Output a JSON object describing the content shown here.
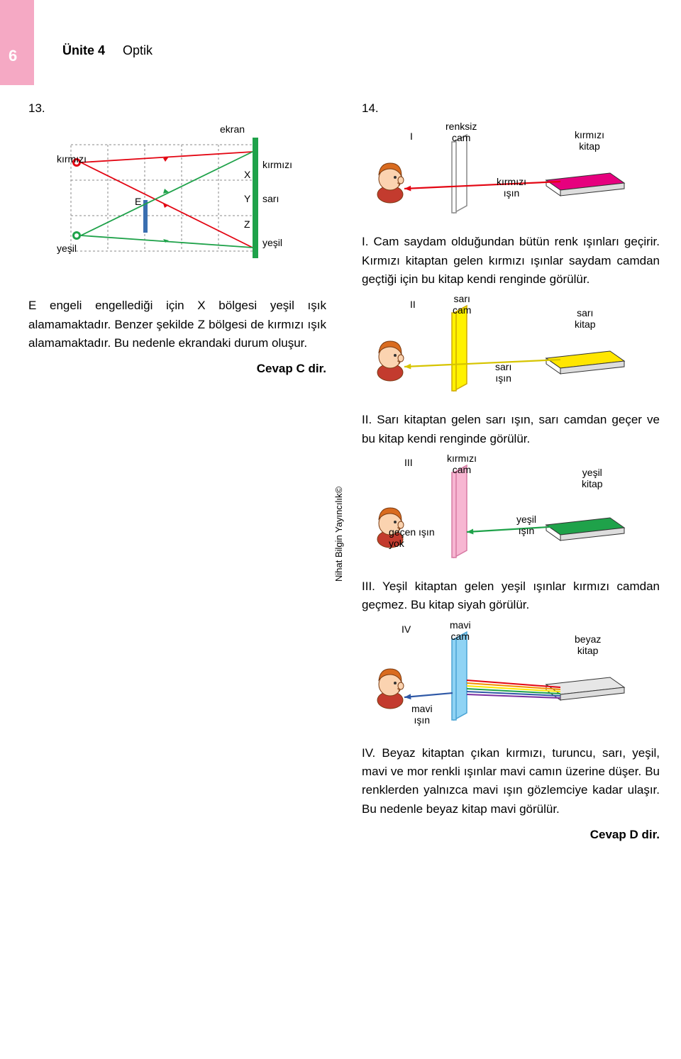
{
  "page": {
    "number": "6",
    "unit": "Ünite 4",
    "topic": "Optik"
  },
  "publisher": "Nihat Bilgin Yayıncılık©",
  "q13": {
    "num": "13.",
    "labels": {
      "ekran": "ekran",
      "kirmizi_left": "kırmızı",
      "kirmizi_right": "kırmızı",
      "sari": "sarı",
      "yesil_left": "yeşil",
      "yesil_right": "yeşil",
      "X": "X",
      "Y": "Y",
      "Z": "Z",
      "E": "E"
    },
    "text": "E engeli engellediği için X bölgesi yeşil ışık alamamaktadır. Benzer şekilde Z bölgesi de kırmızı ışık alamamaktadır. Bu nedenle ekrandaki durum oluşur.",
    "answer": "Cevap C dir.",
    "colors": {
      "red": "#e30613",
      "green": "#1fa24a",
      "sari": "#000",
      "grid": "#c0c0c0",
      "screen": "#1fa24a",
      "obstacle": "#3a6fb0"
    }
  },
  "q14": {
    "num": "14.",
    "I": {
      "label": "I",
      "glass_label": "renksiz\ncam",
      "book_label": "kırmızı\nkitap",
      "light_label": "kırmızı\nışın",
      "glass_color": "#ffffff",
      "glass_border": "#888888",
      "book_color": "#e6007e",
      "arrow_color": "#e30613"
    },
    "text_I": "I. Cam saydam olduğundan bütün renk ışınları geçirir. Kırmızı kitaptan gelen kırmızı ışınlar saydam camdan geçtiği için bu kitap kendi renginde görülür.",
    "II": {
      "label": "II",
      "glass_label": "sarı\ncam",
      "book_label": "sarı\nkitap",
      "light_label": "sarı\nışın",
      "glass_color": "#fff200",
      "glass_border": "#cfa900",
      "book_color": "#ffe600",
      "arrow_color": "#d6c400"
    },
    "text_II": "II. Sarı kitaptan gelen sarı ışın, sarı camdan geçer ve bu kitap kendi renginde görülür.",
    "III": {
      "label": "III",
      "glass_label": "kırmızı\ncam",
      "book_label": "yeşil\nkitap",
      "light_in_label": "yeşil\nışın",
      "no_pass_label": "geçen ışın\nyok",
      "glass_color": "#f7b6d2",
      "glass_border": "#d77aa3",
      "book_color": "#1fa24a",
      "arrow_color": "#1fa24a"
    },
    "text_III": "III. Yeşil kitaptan gelen yeşil ışınlar kırmızı camdan geçmez. Bu kitap siyah görülür.",
    "IV": {
      "label": "IV",
      "glass_label": "mavi\ncam",
      "book_label": "beyaz\nkitap",
      "light_label": "mavi\nışın",
      "glass_color": "#8fd3f4",
      "glass_border": "#4aa3d4",
      "book_color": "#e6e6e6",
      "spectrum": [
        "#e30613",
        "#f39200",
        "#ffe600",
        "#1fa24a",
        "#2e58a6",
        "#7b2fa0"
      ]
    },
    "text_IV": "IV.  Beyaz kitaptan çıkan kırmızı, turuncu, sarı, yeşil, mavi ve mor renkli ışınlar mavi camın üzerine düşer. Bu renklerden yalnızca mavi ışın gözlemciye kadar ulaşır. Bu nedenle beyaz kitap mavi görülür.",
    "answer": "Cevap D dir."
  },
  "boy_palette": {
    "skin": "#fbd3b0",
    "hair": "#d96b1f",
    "shirt": "#c33b2e",
    "outline": "#7a3b12"
  }
}
